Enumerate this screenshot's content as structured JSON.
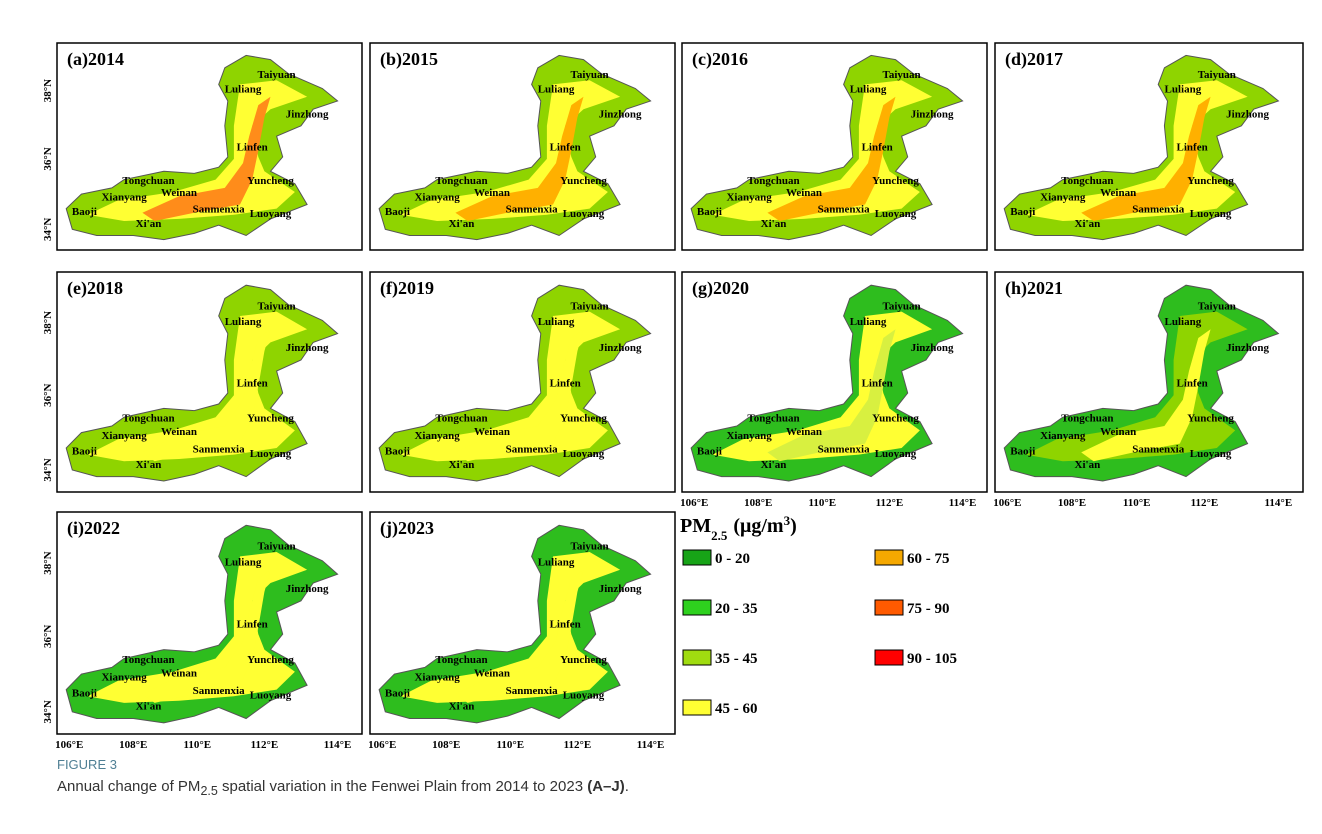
{
  "panels": [
    {
      "label": "(a)2014",
      "fills": [
        "#8fd400",
        "#ffff33",
        "#ff8c1a"
      ]
    },
    {
      "label": "(b)2015",
      "fills": [
        "#8fd400",
        "#ffff33",
        "#ffb000"
      ]
    },
    {
      "label": "(c)2016",
      "fills": [
        "#8fd400",
        "#ffff33",
        "#ffb000"
      ]
    },
    {
      "label": "(d)2017",
      "fills": [
        "#8fd400",
        "#ffff33",
        "#ffb000"
      ]
    },
    {
      "label": "(e)2018",
      "fills": [
        "#8fd400",
        "#ffff33",
        "#ffff33"
      ]
    },
    {
      "label": "(f)2019",
      "fills": [
        "#8fd400",
        "#ffff33",
        "#ffff33"
      ]
    },
    {
      "label": "(g)2020",
      "fills": [
        "#2ebd1e",
        "#ffff33",
        "#d8f040"
      ]
    },
    {
      "label": "(h)2021",
      "fills": [
        "#2ebd1e",
        "#8fd400",
        "#ffff33"
      ]
    },
    {
      "label": "(i)2022",
      "fills": [
        "#2ebd1e",
        "#ffff33",
        "#ffff33"
      ]
    },
    {
      "label": "(j)2023",
      "fills": [
        "#2ebd1e",
        "#ffff33",
        "#ffff33"
      ]
    }
  ],
  "cities": [
    "Taiyuan",
    "Luliang",
    "Jinzhong",
    "Linfen",
    "Tongchuan",
    "Yuncheng",
    "Xianyang",
    "Weinan",
    "Baoji",
    "Sanmenxia",
    "Luoyang",
    "Xi'an"
  ],
  "lat_labels": [
    "38°N",
    "36°N",
    "34°N"
  ],
  "lon_labels": [
    "106°E",
    "108°E",
    "110°E",
    "112°E",
    "114°E"
  ],
  "legend": {
    "title": [
      "PM",
      "2.5",
      "(μg/m",
      "3",
      ")"
    ],
    "items": [
      {
        "label": "0 - 20",
        "color": "#17a317"
      },
      {
        "label": "20 - 35",
        "color": "#2ed11e"
      },
      {
        "label": "35 - 45",
        "color": "#a0dc10"
      },
      {
        "label": "45 - 60",
        "color": "#ffff33"
      },
      {
        "label": "60 - 75",
        "color": "#f5a800"
      },
      {
        "label": "75 - 90",
        "color": "#ff5a00"
      },
      {
        "label": "90 - 105",
        "color": "#ff0000"
      }
    ]
  },
  "caption": {
    "figure": "FIGURE 3",
    "text": [
      "Annual change of PM",
      "2.5",
      " spatial variation in the Fenwei Plain from 2014 to 2023 ",
      "(A–J)",
      "."
    ]
  }
}
